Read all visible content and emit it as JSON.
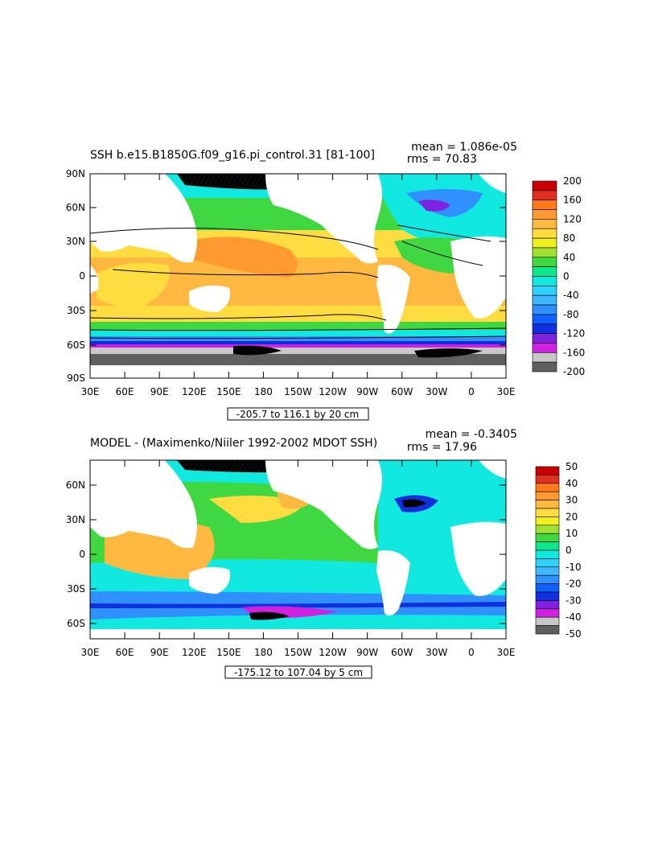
{
  "panel1": {
    "title": "SSH b.e15.B1850G.f09_g16.pi_control.31 [81-100]",
    "stats": {
      "mean": "mean = 1.086e-05",
      "rms": "rms = 70.83"
    },
    "lat_labels": [
      "90N",
      "60N",
      "30N",
      "0",
      "30S",
      "60S",
      "90S"
    ],
    "lon_labels": [
      "30E",
      "60E",
      "90E",
      "120E",
      "150E",
      "180",
      "150W",
      "120W",
      "90W",
      "60W",
      "30W",
      "0",
      "30E"
    ],
    "range_caption": "-205.7 to 116.1 by 20 cm",
    "colorbar": {
      "labels": [
        "200",
        "160",
        "120",
        "80",
        "40",
        "0",
        "-40",
        "-80",
        "-120",
        "-160",
        "-200"
      ],
      "colors": [
        "#c80000",
        "#e03020",
        "#ff7a1a",
        "#ff9a30",
        "#ffb840",
        "#ffdc40",
        "#f0f020",
        "#a0e030",
        "#40d840",
        "#10e890",
        "#10e8e0",
        "#30d0f8",
        "#40b8ff",
        "#3090ff",
        "#1060ff",
        "#1030e0",
        "#8020e0",
        "#d020e0",
        "#c8c8c8",
        "#606060"
      ]
    }
  },
  "panel2": {
    "title": "MODEL - (Maximenko/Niiler 1992-2002 MDOT SSH)",
    "stats": {
      "mean": "mean = -0.3405",
      "rms": "rms = 17.96"
    },
    "lat_labels": [
      "60N",
      "30N",
      "0",
      "30S",
      "60S"
    ],
    "lon_labels": [
      "30E",
      "60E",
      "90E",
      "120E",
      "150E",
      "180",
      "150W",
      "120W",
      "90W",
      "60W",
      "30W",
      "0",
      "30E"
    ],
    "range_caption": "-175.12 to 107.04 by 5 cm",
    "colorbar": {
      "labels": [
        "50",
        "40",
        "30",
        "20",
        "10",
        "0",
        "-10",
        "-20",
        "-30",
        "-40",
        "-50"
      ],
      "colors": [
        "#c80000",
        "#e03020",
        "#ff7a1a",
        "#ff9a30",
        "#ffb840",
        "#ffdc40",
        "#f0f020",
        "#a0e030",
        "#40d840",
        "#10e890",
        "#10e8e0",
        "#30d0f8",
        "#40b8ff",
        "#3090ff",
        "#1060ff",
        "#1030e0",
        "#8020e0",
        "#d020e0",
        "#c8c8c8",
        "#606060"
      ]
    }
  },
  "palette": {
    "land": "#ffffff",
    "frame": "#000000",
    "tropics": "#ffdc40",
    "subtropics": "#ffb840",
    "mid": "#40d840",
    "cyan": "#10e8e0",
    "blue": "#3090ff",
    "purple": "#d020e0",
    "grey": "#c8c8c8",
    "dark": "#606060"
  }
}
